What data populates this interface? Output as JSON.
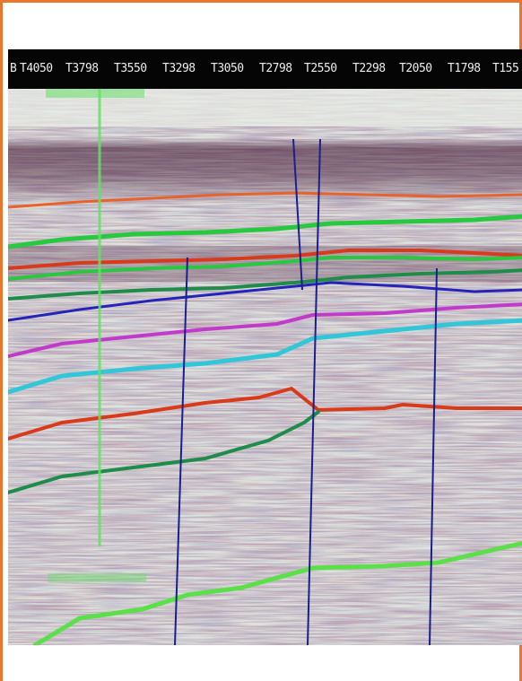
{
  "header": {
    "trace_labels": [
      "B",
      "T4050",
      "T3798",
      "T3550",
      "T3298",
      "T3050",
      "T2798",
      "T2550",
      "T2298",
      "T2050",
      "T1798",
      "T155"
    ]
  },
  "colors": {
    "frame_border": "#e8762c",
    "header_bg": "#050505",
    "header_text": "#ececec",
    "section_bg": "#dfe3dd",
    "fault": "#1b1f8c",
    "horizon_orange": "#e8622c",
    "horizon_green": "#27c93f",
    "horizon_red": "#d83a1a",
    "horizon_darkgreen": "#1f8c4a",
    "horizon_blue": "#2424b8",
    "horizon_magenta": "#c23ac9",
    "horizon_cyan": "#31c6d8",
    "horizon_lime": "#5be04a",
    "well_marker": "#66e066"
  }
}
